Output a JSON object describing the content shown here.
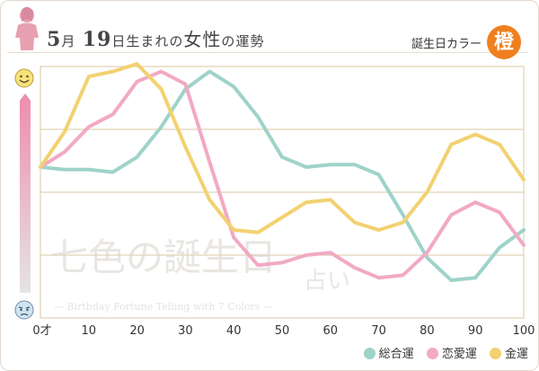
{
  "header": {
    "month": "5",
    "month_unit": "月",
    "day": "19",
    "title_mid": "日生まれの",
    "title_big": "女性",
    "title_end": "の運勢",
    "color_label": "誕生日カラー",
    "color_kanji": "橙"
  },
  "watermark": {
    "line1": "七色の誕生日",
    "line1b": "占い",
    "line2": "— Birthday Fortune Telling with 7 Colors —"
  },
  "colors": {
    "total": "#9ed3c9",
    "love": "#f2a9c4",
    "money": "#f2d170",
    "grid": "#d9c9a3",
    "badge": "#f07f1e"
  },
  "chart_data": {
    "type": "line",
    "title": "5月19日生まれの女性の運勢",
    "xlabel": "",
    "ylabel": "",
    "x_tick_labels": [
      "0才",
      "10",
      "20",
      "30",
      "40",
      "50",
      "60",
      "70",
      "80",
      "90",
      "100"
    ],
    "x_ticks": [
      0,
      10,
      20,
      30,
      40,
      50,
      60,
      70,
      80,
      90,
      100
    ],
    "xlim": [
      0,
      100
    ],
    "ylim": [
      0,
      100
    ],
    "x": [
      0,
      5,
      10,
      15,
      20,
      25,
      30,
      35,
      40,
      45,
      50,
      55,
      60,
      65,
      70,
      75,
      80,
      85,
      90,
      95,
      100
    ],
    "series": [
      {
        "name": "総合運",
        "key": "total",
        "values": [
          60,
          59,
          59,
          58,
          64,
          76,
          91,
          98,
          92,
          80,
          64,
          60,
          61,
          61,
          57,
          41,
          24,
          15,
          16,
          28,
          35
        ]
      },
      {
        "name": "恋愛運",
        "key": "love",
        "values": [
          60,
          66,
          76,
          81,
          94,
          98,
          93,
          62,
          32,
          21,
          22,
          25,
          26,
          20,
          16,
          17,
          26,
          41,
          46,
          42,
          29
        ]
      },
      {
        "name": "金運",
        "key": "money",
        "values": [
          60,
          74,
          96,
          98,
          101,
          91,
          68,
          47,
          35,
          34,
          40,
          46,
          47,
          38,
          35,
          38,
          50,
          69,
          73,
          69,
          55
        ]
      }
    ],
    "legend": [
      "総合運",
      "恋愛運",
      "金運"
    ],
    "legend_position": "bottom-right",
    "grid": true
  }
}
